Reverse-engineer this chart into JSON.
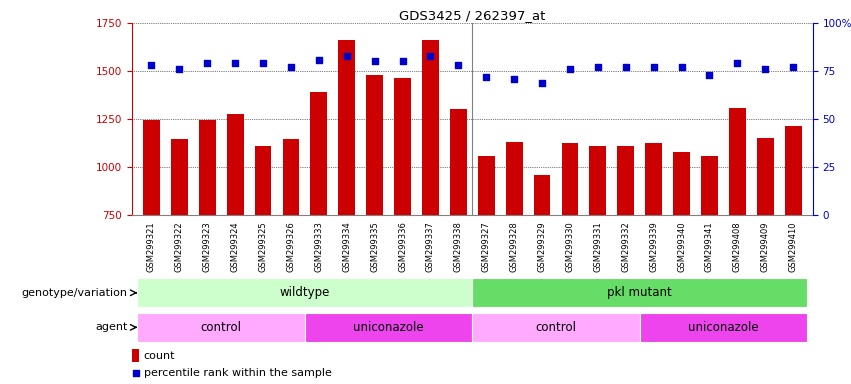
{
  "title": "GDS3425 / 262397_at",
  "samples": [
    "GSM299321",
    "GSM299322",
    "GSM299323",
    "GSM299324",
    "GSM299325",
    "GSM299326",
    "GSM299333",
    "GSM299334",
    "GSM299335",
    "GSM299336",
    "GSM299337",
    "GSM299338",
    "GSM299327",
    "GSM299328",
    "GSM299329",
    "GSM299330",
    "GSM299331",
    "GSM299332",
    "GSM299339",
    "GSM299340",
    "GSM299341",
    "GSM299408",
    "GSM299409",
    "GSM299410"
  ],
  "counts": [
    1247,
    1148,
    1247,
    1275,
    1110,
    1148,
    1390,
    1660,
    1480,
    1465,
    1660,
    1300,
    1060,
    1130,
    960,
    1125,
    1110,
    1110,
    1125,
    1080,
    1060,
    1305,
    1150,
    1215
  ],
  "percentile_ranks": [
    78,
    76,
    79,
    79,
    79,
    77,
    81,
    83,
    80,
    80,
    83,
    78,
    72,
    71,
    69,
    76,
    77,
    77,
    77,
    77,
    73,
    79,
    76,
    77
  ],
  "bar_color": "#cc0000",
  "dot_color": "#0000cc",
  "ylim_left": [
    750,
    1750
  ],
  "ylim_right": [
    0,
    100
  ],
  "yticks_left": [
    750,
    1000,
    1250,
    1500,
    1750
  ],
  "yticks_right": [
    0,
    25,
    50,
    75,
    100
  ],
  "ylabel_left_color": "#cc0000",
  "ylabel_right_color": "#0000cc",
  "genotype_groups": [
    {
      "label": "wildtype",
      "start": 0,
      "end": 11,
      "color": "#ccffcc"
    },
    {
      "label": "pkl mutant",
      "start": 12,
      "end": 23,
      "color": "#66dd66"
    }
  ],
  "agent_groups": [
    {
      "label": "control",
      "start": 0,
      "end": 5,
      "color": "#ffaaff"
    },
    {
      "label": "uniconazole",
      "start": 6,
      "end": 11,
      "color": "#ee44ee"
    },
    {
      "label": "control",
      "start": 12,
      "end": 17,
      "color": "#ffaaff"
    },
    {
      "label": "uniconazole",
      "start": 18,
      "end": 23,
      "color": "#ee44ee"
    }
  ],
  "legend_count_color": "#cc0000",
  "legend_pct_color": "#0000cc",
  "background_color": "#ffffff",
  "genotype_label": "genotype/variation",
  "agent_label": "agent"
}
